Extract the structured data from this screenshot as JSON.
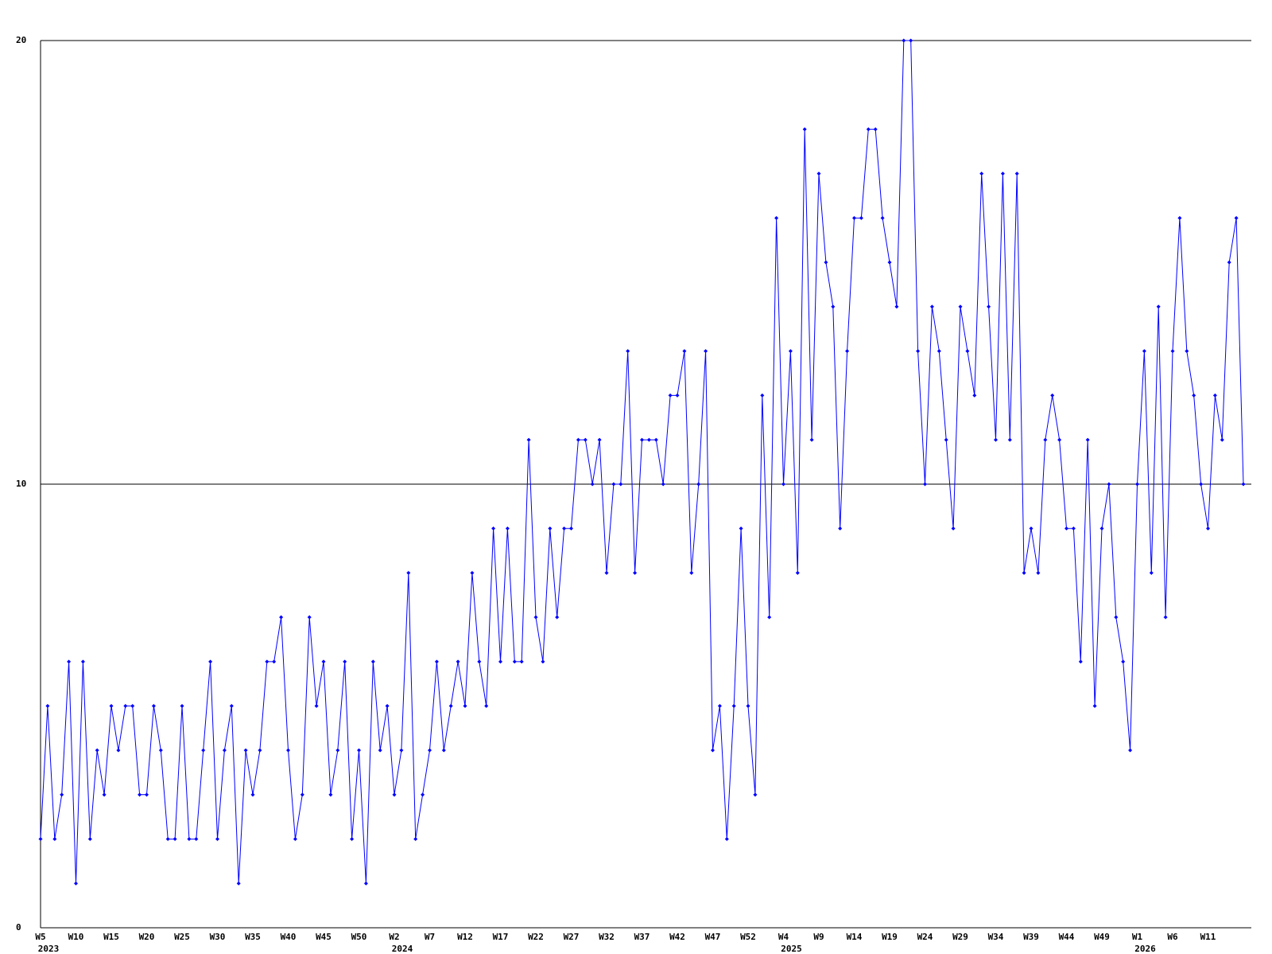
{
  "chart_data": {
    "type": "line",
    "categories": [
      "W5",
      null,
      null,
      null,
      null,
      "W10",
      null,
      null,
      null,
      null,
      "W15",
      null,
      null,
      null,
      null,
      "W20",
      null,
      null,
      null,
      null,
      "W25",
      null,
      null,
      null,
      null,
      "W30",
      null,
      null,
      null,
      null,
      "W35",
      null,
      null,
      null,
      null,
      "W40",
      null,
      null,
      null,
      null,
      "W45",
      null,
      null,
      null,
      null,
      "W50",
      null,
      null,
      null,
      null,
      "W2",
      null,
      null,
      null,
      null,
      "W7",
      null,
      null,
      null,
      null,
      "W12",
      null,
      null,
      null,
      null,
      "W17",
      null,
      null,
      null,
      null,
      "W22",
      null,
      null,
      null,
      null,
      "W27",
      null,
      null,
      null,
      null,
      "W32",
      null,
      null,
      null,
      null,
      "W37",
      null,
      null,
      null,
      null,
      "W42",
      null,
      null,
      null,
      null,
      "W47",
      null,
      null,
      null,
      null,
      "W52",
      null,
      null,
      null,
      null,
      "W4",
      null,
      null,
      null,
      null,
      "W9",
      null,
      null,
      null,
      null,
      "W14",
      null,
      null,
      null,
      null,
      "W19",
      null,
      null,
      null,
      null,
      "W24",
      null,
      null,
      null,
      null,
      "W29",
      null,
      null,
      null,
      null,
      "W34",
      null,
      null,
      null,
      null,
      "W39",
      null,
      null,
      null,
      null,
      "W44",
      null,
      null,
      null,
      null,
      "W49",
      null,
      null,
      null,
      null,
      "W1",
      null,
      null,
      null,
      null,
      "W6",
      null,
      null,
      null,
      null,
      "W11",
      null,
      null,
      null,
      null,
      null
    ],
    "year_labels": {
      "labels": [
        "2023",
        "2024",
        "2025",
        "2026"
      ],
      "category_index": [
        0,
        50,
        105,
        155
      ]
    },
    "series": [
      {
        "color": "#0000ff",
        "values": [
          2,
          5,
          2,
          3,
          6,
          1,
          6,
          2,
          4,
          3,
          5,
          4,
          5,
          5,
          3,
          3,
          5,
          4,
          2,
          2,
          5,
          2,
          2,
          4,
          6,
          2,
          4,
          5,
          1,
          4,
          3,
          4,
          6,
          6,
          7,
          4,
          2,
          3,
          7,
          5,
          6,
          3,
          4,
          6,
          2,
          4,
          1,
          6,
          4,
          5,
          3,
          4,
          8,
          2,
          3,
          4,
          6,
          4,
          5,
          6,
          5,
          8,
          6,
          5,
          9,
          6,
          9,
          6,
          6,
          11,
          7,
          6,
          9,
          7,
          9,
          9,
          11,
          11,
          10,
          11,
          8,
          10,
          10,
          13,
          8,
          11,
          11,
          11,
          10,
          12,
          12,
          13,
          8,
          10,
          13,
          4,
          5,
          2,
          5,
          9,
          5,
          3,
          12,
          7,
          16,
          10,
          13,
          8,
          18,
          11,
          17,
          15,
          14,
          9,
          13,
          16,
          16,
          18,
          18,
          16,
          15,
          14,
          20,
          20,
          13,
          10,
          14,
          13,
          11,
          9,
          14,
          13,
          12,
          17,
          14,
          11,
          17,
          11,
          17,
          8,
          9,
          8,
          11,
          12,
          11,
          9,
          9,
          6,
          11,
          5,
          9,
          10,
          7,
          6,
          4,
          10,
          13,
          8,
          14,
          7,
          13,
          16,
          13,
          12,
          10,
          9,
          12,
          11,
          15,
          16,
          10
        ]
      }
    ],
    "ylim": [
      0,
      20
    ],
    "yticks": [
      0,
      10,
      20
    ],
    "grid": true
  }
}
